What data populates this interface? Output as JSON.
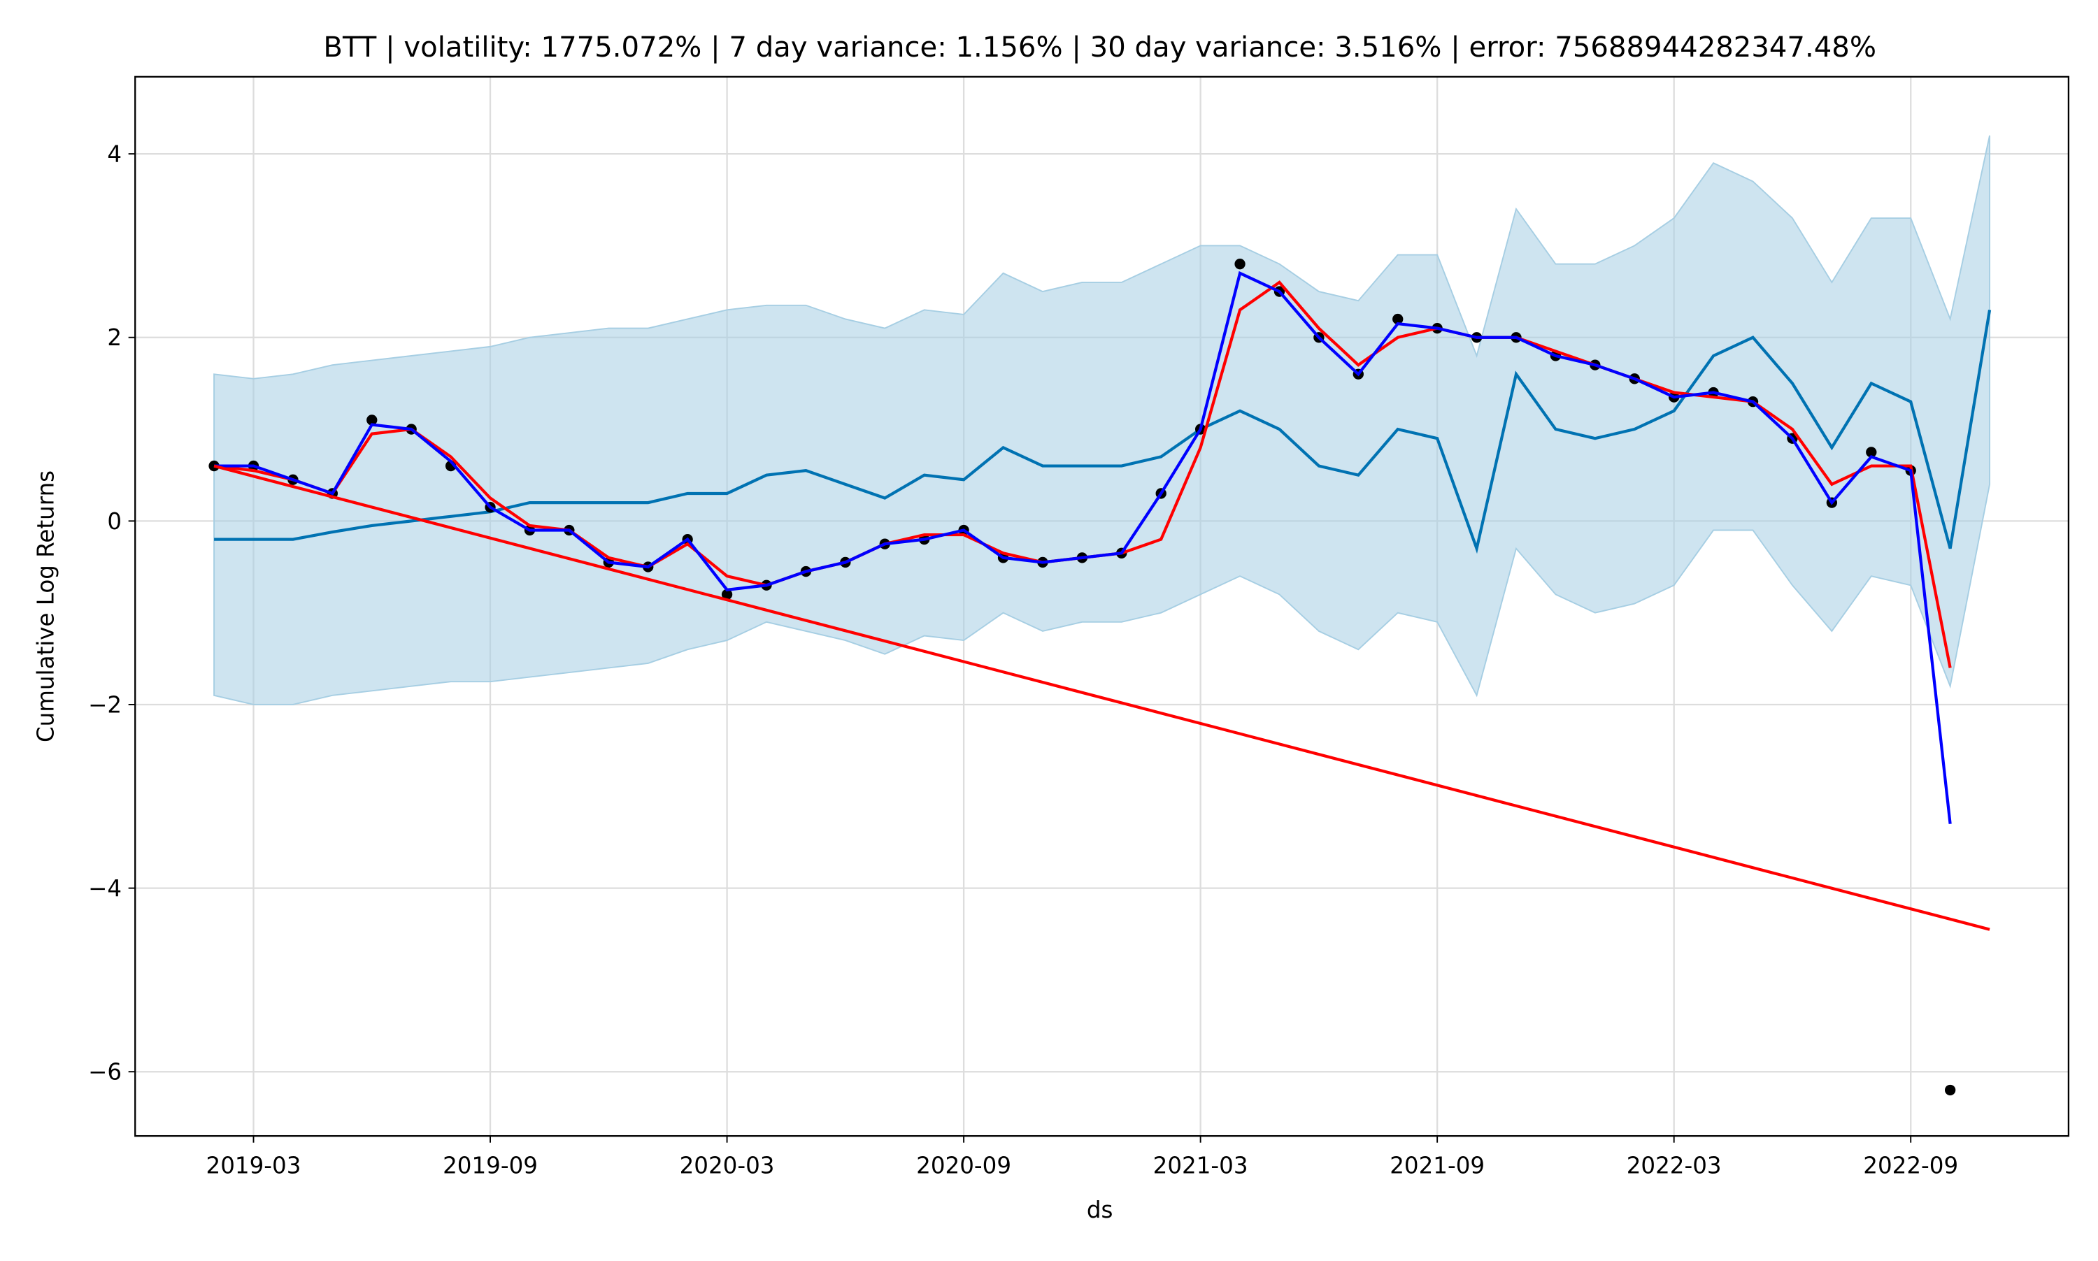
{
  "chart_data": {
    "type": "line",
    "title": "BTT | volatility: 1775.072% | 7 day variance: 1.156% | 30 day variance: 3.516% | error: 75688944282347.48%",
    "x_label": "ds",
    "y_label": "Cumulative Log Returns",
    "grid": true,
    "x": [
      "2019-02",
      "2019-03",
      "2019-04",
      "2019-05",
      "2019-06",
      "2019-07",
      "2019-08",
      "2019-09",
      "2019-10",
      "2019-11",
      "2019-12",
      "2020-01",
      "2020-02",
      "2020-03",
      "2020-04",
      "2020-05",
      "2020-06",
      "2020-07",
      "2020-08",
      "2020-09",
      "2020-10",
      "2020-11",
      "2020-12",
      "2021-01",
      "2021-02",
      "2021-03",
      "2021-04",
      "2021-05",
      "2021-06",
      "2021-07",
      "2021-08",
      "2021-09",
      "2021-10",
      "2021-11",
      "2021-12",
      "2022-01",
      "2022-02",
      "2022-03",
      "2022-04",
      "2022-05",
      "2022-06",
      "2022-07",
      "2022-08",
      "2022-09",
      "2022-10",
      "2022-11"
    ],
    "xlim": [
      "2018-12",
      "2023-01"
    ],
    "xticks": [
      "2019-03",
      "2019-09",
      "2020-03",
      "2020-09",
      "2021-03",
      "2021-09",
      "2022-03",
      "2022-09"
    ],
    "ylim": [
      -6.7,
      4.84
    ],
    "yticks": [
      {
        "value": -6,
        "label": "−6"
      },
      {
        "value": -4,
        "label": "−4"
      },
      {
        "value": -2,
        "label": "−2"
      },
      0,
      2,
      4
    ],
    "series": [
      {
        "type": "band",
        "color": "#a6cee3",
        "upper": [
          1.6,
          1.55,
          1.6,
          1.7,
          1.75,
          1.8,
          1.85,
          1.9,
          2.0,
          2.05,
          2.1,
          2.1,
          2.2,
          2.3,
          2.35,
          2.35,
          2.2,
          2.1,
          2.3,
          2.25,
          2.7,
          2.5,
          2.6,
          2.6,
          2.8,
          3.0,
          3.0,
          2.8,
          2.5,
          2.4,
          2.9,
          2.9,
          1.8,
          3.4,
          2.8,
          2.8,
          3.0,
          3.3,
          3.9,
          3.7,
          3.3,
          2.6,
          3.3,
          3.3,
          2.2,
          4.2
        ],
        "lower": [
          -1.9,
          -2.0,
          -2.0,
          -1.9,
          -1.85,
          -1.8,
          -1.75,
          -1.75,
          -1.7,
          -1.65,
          -1.6,
          -1.55,
          -1.4,
          -1.3,
          -1.1,
          -1.2,
          -1.3,
          -1.45,
          -1.25,
          -1.3,
          -1.0,
          -1.2,
          -1.1,
          -1.1,
          -1.0,
          -0.8,
          -0.6,
          -0.8,
          -1.2,
          -1.4,
          -1.0,
          -1.1,
          -1.9,
          -0.3,
          -0.8,
          -1.0,
          -0.9,
          -0.7,
          -0.1,
          -0.1,
          -0.7,
          -1.2,
          -0.6,
          -0.7,
          -1.8,
          0.4
        ]
      },
      {
        "type": "line",
        "color": "#0072B2",
        "values": [
          -0.2,
          -0.2,
          -0.2,
          -0.12,
          -0.05,
          0.0,
          0.05,
          0.1,
          0.2,
          0.2,
          0.2,
          0.2,
          0.3,
          0.3,
          0.5,
          0.55,
          0.4,
          0.25,
          0.5,
          0.45,
          0.8,
          0.6,
          0.6,
          0.6,
          0.7,
          1.0,
          1.2,
          1.0,
          0.6,
          0.5,
          1.0,
          0.9,
          -0.3,
          1.6,
          1.0,
          0.9,
          1.0,
          1.2,
          1.8,
          2.0,
          1.5,
          0.8,
          1.5,
          1.3,
          -0.3,
          2.3
        ]
      },
      {
        "type": "scatter",
        "color": "#000000",
        "values": [
          0.6,
          0.6,
          0.45,
          0.3,
          1.1,
          1.0,
          0.6,
          0.15,
          -0.1,
          -0.1,
          -0.45,
          -0.5,
          -0.2,
          -0.8,
          -0.7,
          -0.55,
          -0.45,
          -0.25,
          -0.2,
          -0.1,
          -0.4,
          -0.45,
          -0.4,
          -0.35,
          0.3,
          1.0,
          2.8,
          2.5,
          2.0,
          1.6,
          2.2,
          2.1,
          2.0,
          2.0,
          1.8,
          1.7,
          1.55,
          1.35,
          1.4,
          1.3,
          0.9,
          0.2,
          0.75,
          0.55,
          -6.2,
          null
        ]
      },
      {
        "type": "line",
        "color": "#ff0000",
        "values": [
          0.6,
          0.55,
          0.45,
          0.3,
          0.95,
          1.0,
          0.7,
          0.25,
          -0.05,
          -0.1,
          -0.4,
          -0.5,
          -0.25,
          -0.6,
          -0.7,
          -0.55,
          -0.45,
          -0.25,
          -0.15,
          -0.15,
          -0.35,
          -0.45,
          -0.4,
          -0.35,
          -0.2,
          0.8,
          2.3,
          2.6,
          2.1,
          1.7,
          2.0,
          2.1,
          2.0,
          2.0,
          1.85,
          1.7,
          1.55,
          1.4,
          1.35,
          1.3,
          1.0,
          0.4,
          0.6,
          0.6,
          -1.6,
          null
        ]
      },
      {
        "type": "line",
        "color": "#0000ff",
        "values": [
          0.6,
          0.6,
          0.45,
          0.3,
          1.05,
          1.0,
          0.65,
          0.15,
          -0.1,
          -0.1,
          -0.45,
          -0.5,
          -0.2,
          -0.75,
          -0.7,
          -0.55,
          -0.45,
          -0.25,
          -0.2,
          -0.1,
          -0.4,
          -0.45,
          -0.4,
          -0.35,
          0.3,
          1.0,
          2.7,
          2.5,
          2.0,
          1.6,
          2.15,
          2.1,
          2.0,
          2.0,
          1.8,
          1.7,
          1.55,
          1.35,
          1.4,
          1.3,
          0.9,
          0.2,
          0.7,
          0.55,
          -3.3,
          null
        ]
      },
      {
        "type": "line",
        "color": "#ff0000",
        "x": [
          "2019-02",
          "2022-11"
        ],
        "values": [
          0.6,
          -4.45
        ]
      }
    ]
  }
}
